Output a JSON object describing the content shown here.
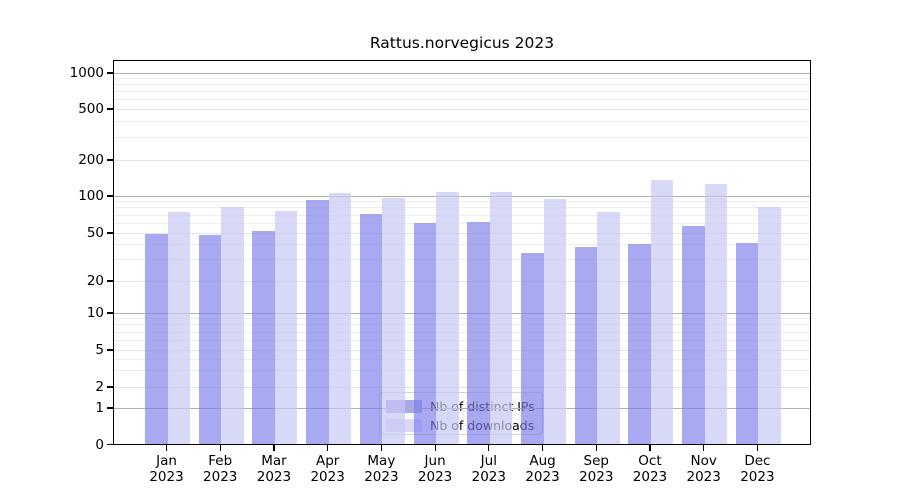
{
  "title": "Rattus.norvegicus 2023",
  "chart_data": {
    "type": "bar",
    "title": "Rattus.norvegicus 2023",
    "categories": [
      "Jan 2023",
      "Feb 2023",
      "Mar 2023",
      "Apr 2023",
      "May 2023",
      "Jun 2023",
      "Jul 2023",
      "Aug 2023",
      "Sep 2023",
      "Oct 2023",
      "Nov 2023",
      "Dec 2023"
    ],
    "series": [
      {
        "name": "Nb of distinct IPs",
        "color": "#a7a7ef",
        "fill": "rgba(124,124,235,0.66)",
        "values": [
          49,
          48,
          51,
          92,
          71,
          60,
          61,
          34,
          38,
          40,
          57,
          41
        ]
      },
      {
        "name": "Nb of downloads",
        "color": "#d9d9f8",
        "fill": "rgba(200,200,243,0.70)",
        "values": [
          73,
          80,
          75,
          105,
          95,
          106,
          108,
          93,
          74,
          135,
          125,
          80
        ]
      }
    ],
    "xlabel": "",
    "ylabel": "",
    "y_scale": "symlog",
    "y_ticks": [
      0,
      1,
      2,
      5,
      10,
      20,
      50,
      100,
      200,
      500,
      1000
    ],
    "y_tick_labels": [
      "0",
      "1",
      "2",
      "5",
      "10",
      "20",
      "50",
      "100",
      "200",
      "500",
      "1000"
    ],
    "ylim": [
      0,
      1300
    ],
    "grid": true,
    "legend_position": "lower center",
    "colors": {
      "major_grid": "#b0b0b0",
      "tick_grid": "#e3e3e3",
      "minor_grid": "#ededed",
      "axis": "#000000",
      "background": "#ffffff"
    }
  }
}
